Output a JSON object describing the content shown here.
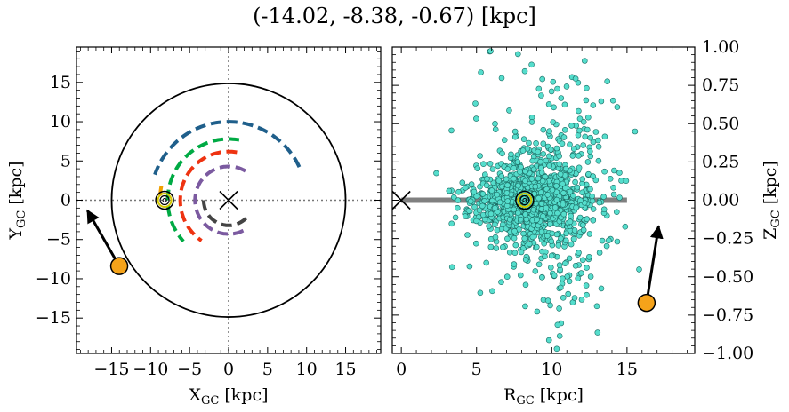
{
  "title": "(-14.02, -8.38, -0.67) [kpc]",
  "chart_data": [
    {
      "type": "scatter",
      "panel": "left",
      "xlabel": {
        "main": "X",
        "sub": "GC",
        "unit": " [kpc]"
      },
      "ylabel": {
        "main": "Y",
        "sub": "GC",
        "unit": " [kpc]"
      },
      "xlim": [
        -19.5,
        19.5
      ],
      "ylim": [
        -19.5,
        19.5
      ],
      "xticks": [
        -15,
        -10,
        -5,
        0,
        5,
        10,
        15
      ],
      "xtick_labels": [
        "−15",
        "−10",
        "−5",
        "0",
        "5",
        "10",
        "15"
      ],
      "yticks": [
        -15,
        -10,
        -5,
        0,
        5,
        10,
        15
      ],
      "ytick_labels": [
        "−15",
        "−10",
        "−5",
        "0",
        "5",
        "10",
        "15"
      ],
      "galactic_center": [
        0,
        0
      ],
      "sun": [
        -8.2,
        0
      ],
      "boundary_circle_radius": 15,
      "dotted_crosshair": true,
      "spiral_arms": [
        {
          "color": "#1f5f8b",
          "r": 10.0,
          "theta_deg": [
            25,
            162
          ]
        },
        {
          "color": "#00aa44",
          "r": 7.8,
          "theta_deg": [
            80,
            223
          ]
        },
        {
          "color": "#ee3311",
          "r": 6.2,
          "theta_deg": [
            80,
            237
          ]
        },
        {
          "color": "#7b5aa0",
          "r": 4.3,
          "theta_deg": [
            60,
            297
          ]
        },
        {
          "color": "#444444",
          "r": 3.2,
          "theta_deg": [
            180,
            320
          ]
        },
        {
          "color": "#f0a000",
          "r": 8.8,
          "theta_deg": [
            168,
            177
          ]
        }
      ],
      "object": {
        "x": -14.02,
        "y": -8.38,
        "color": "#f5a31a"
      },
      "velocity_arrow": {
        "from": [
          -14.02,
          -8.38
        ],
        "to": [
          -18.1,
          -1.3
        ]
      }
    },
    {
      "type": "scatter",
      "panel": "right",
      "xlabel": {
        "main": "R",
        "sub": "GC",
        "unit": " [kpc]"
      },
      "ylabel": {
        "main": "Z",
        "sub": "GC",
        "unit": " [kpc]"
      },
      "xlim": [
        -0.6,
        19.5
      ],
      "ylim": [
        -1.0,
        1.0
      ],
      "xticks": [
        0,
        5,
        10,
        15
      ],
      "xtick_labels": [
        "0",
        "5",
        "10",
        "15"
      ],
      "yticks": [
        -1.0,
        -0.75,
        -0.5,
        -0.25,
        0.0,
        0.25,
        0.5,
        0.75,
        1.0
      ],
      "ytick_labels": [
        "−1.00",
        "−0.75",
        "−0.50",
        "−0.25",
        "0.00",
        "0.25",
        "0.50",
        "0.75",
        "1.00"
      ],
      "disk_line": {
        "x": [
          0,
          15
        ],
        "z": 0,
        "color": "#808080"
      },
      "galactic_center": [
        0,
        0
      ],
      "sun": [
        8.2,
        0
      ],
      "star_cloud": {
        "center_r": 8.5,
        "n_points": 1600,
        "color": "#55ddcc"
      },
      "object": {
        "x": 16.3,
        "y": -0.67,
        "color": "#f5a31a"
      },
      "velocity_arrow": {
        "from": [
          16.3,
          -0.67
        ],
        "to": [
          17.1,
          -0.17
        ]
      }
    }
  ]
}
